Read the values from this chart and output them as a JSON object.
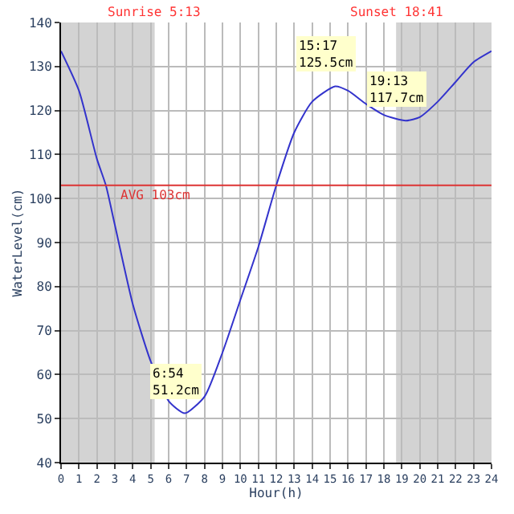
{
  "chart_data": {
    "type": "line",
    "xlabel": "Hour(h)",
    "ylabel": "WaterLevel(cm)",
    "x": [
      0,
      1,
      2,
      2.5,
      3,
      4,
      5,
      6,
      6.9,
      8,
      9,
      10,
      11,
      12,
      13,
      14,
      15.28,
      16,
      17,
      18,
      19.22,
      20,
      21,
      22,
      23,
      24
    ],
    "series": [
      {
        "color": "#3333cc",
        "values": [
          133.5,
          124.5,
          109,
          103,
          94,
          76,
          63,
          54,
          51.2,
          55,
          65,
          77,
          89,
          103,
          115,
          122,
          125.5,
          124.5,
          121.5,
          119,
          117.7,
          118.5,
          122,
          126.5,
          131,
          133.5
        ]
      }
    ],
    "xlim": [
      0,
      24
    ],
    "xticks": [
      0,
      1,
      2,
      3,
      4,
      5,
      6,
      7,
      8,
      9,
      10,
      11,
      12,
      13,
      14,
      15,
      16,
      17,
      18,
      19,
      20,
      21,
      22,
      23,
      24
    ],
    "ylim": [
      40,
      140
    ],
    "yticks": [
      40,
      50,
      60,
      70,
      80,
      90,
      100,
      110,
      120,
      130,
      140
    ],
    "grid": true,
    "marker": "none",
    "line_style": "solid",
    "ref_lines": [
      {
        "axis": "y",
        "value": 103,
        "label": "AVG 103cm",
        "color": "#dd3333"
      }
    ],
    "bands": [
      {
        "axis": "x",
        "from": 0,
        "to": 5.22,
        "color": "#d3d3d3"
      },
      {
        "axis": "x",
        "from": 18.68,
        "to": 24,
        "color": "#d3d3d3"
      }
    ],
    "annotations": [
      "Sunrise 5:13",
      "Sunset 18:41",
      {
        "text": "6:54\n51.2cm",
        "x": 6.9,
        "y": 51.2
      },
      {
        "text": "15:17\n125.5cm",
        "x": 15.28,
        "y": 125.5
      },
      {
        "text": "19:13\n117.7cm",
        "x": 19.22,
        "y": 117.7
      }
    ]
  }
}
